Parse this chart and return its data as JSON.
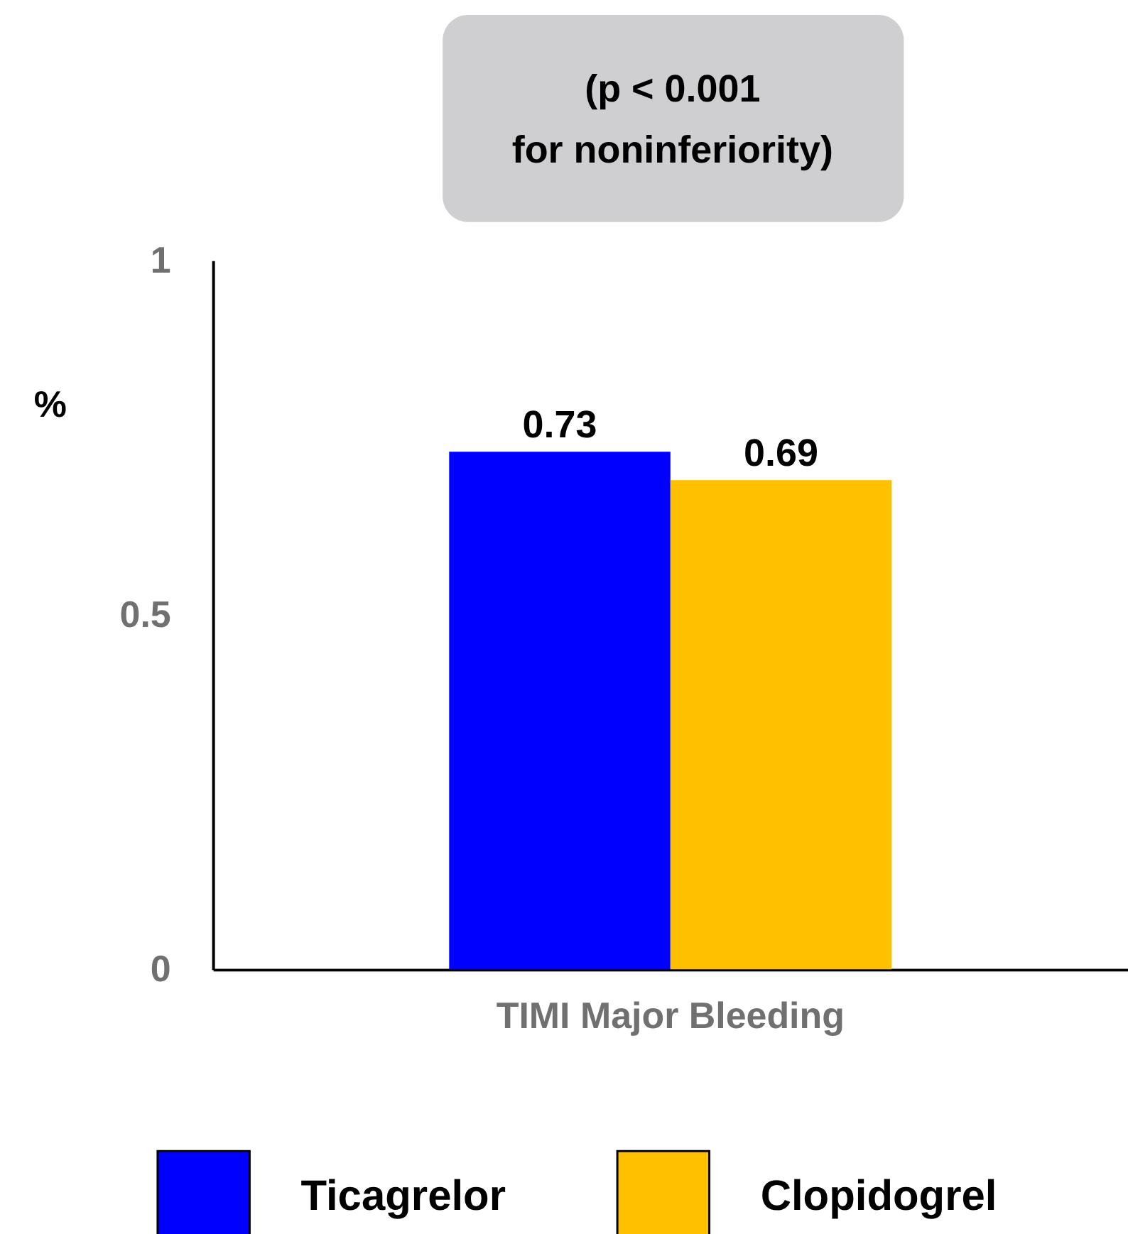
{
  "chart_data": {
    "type": "bar",
    "categories": [
      "TIMI Major Bleeding"
    ],
    "series": [
      {
        "name": "Ticagrelor",
        "color": "#0000ff",
        "values": [
          0.73
        ]
      },
      {
        "name": "Clopidogrel",
        "color": "#ffc000",
        "values": [
          0.69
        ]
      }
    ],
    "ylabel": "%",
    "ylim": [
      0,
      1
    ],
    "yticks": [
      0,
      0.5,
      1
    ],
    "data_labels": true,
    "grid": false,
    "legend": "bottom",
    "annotations": [
      "(p < 0.001 for noninferiority)"
    ]
  }
}
